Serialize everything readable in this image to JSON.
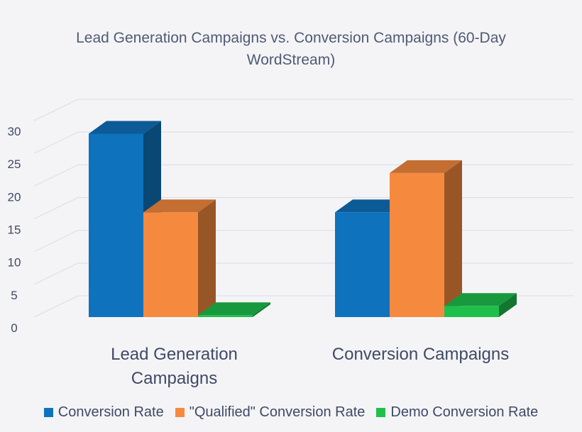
{
  "chart_data": {
    "type": "bar",
    "title": "Lead Generation Campaigns vs. Conversion Campaigns (60-Day WordStream)",
    "categories": [
      "Lead Generation Campaigns",
      "Conversion Campaigns"
    ],
    "series": [
      {
        "name": "Conversion Rate",
        "values": [
          28,
          16
        ],
        "color": "#0f72bd"
      },
      {
        "name": "\"Qualified\" Conversion Rate",
        "values": [
          16,
          22
        ],
        "color": "#f58a3f"
      },
      {
        "name": "Demo Conversion Rate",
        "values": [
          0.3,
          1.7
        ],
        "color": "#1fbf4c"
      }
    ],
    "yticks": [
      "0",
      "5",
      "10",
      "15",
      "20",
      "25",
      "30"
    ],
    "ylim": [
      0,
      30
    ],
    "grid": true,
    "legend_position": "bottom"
  }
}
